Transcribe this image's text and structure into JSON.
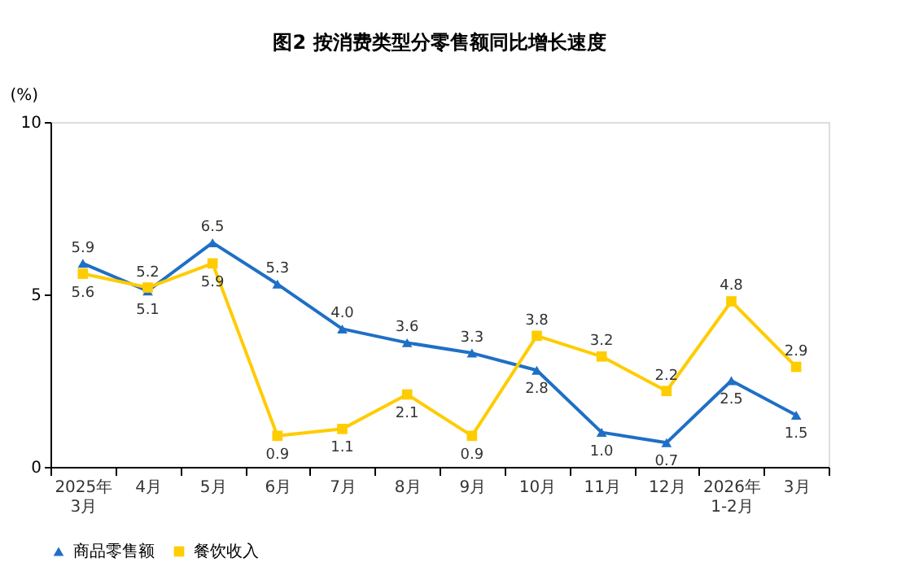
{
  "chart_data": {
    "type": "line",
    "title": "图2 按消费类型分零售额同比增长速度",
    "ylabel": "(%)",
    "categories": [
      "2025年\n3月",
      "4月",
      "5月",
      "6月",
      "7月",
      "8月",
      "9月",
      "10月",
      "11月",
      "12月",
      "2026年\n1-2月",
      "3月"
    ],
    "series": [
      {
        "name": "商品零售额",
        "color": "#1f6fc5",
        "marker": "triangle",
        "values": [
          5.9,
          5.1,
          6.5,
          5.3,
          4.0,
          3.6,
          3.3,
          2.8,
          1.0,
          0.7,
          2.5,
          1.5
        ],
        "value_labels": [
          "5.9",
          "5.1",
          "6.5",
          "5.3",
          "4.0",
          "3.6",
          "3.3",
          "2.8",
          "1.0",
          "0.7",
          "2.5",
          "1.5"
        ]
      },
      {
        "name": "餐饮收入",
        "color": "#ffcc00",
        "marker": "square",
        "values": [
          5.6,
          5.2,
          5.9,
          0.9,
          1.1,
          2.1,
          0.9,
          3.8,
          3.2,
          2.2,
          4.8,
          2.9
        ],
        "value_labels": [
          "5.6",
          "5.2",
          "5.9",
          "0.9",
          "1.1",
          "2.1",
          "0.9",
          "3.8",
          "3.2",
          "2.2",
          "4.8",
          "2.9"
        ]
      }
    ],
    "ylim": [
      0,
      10
    ],
    "yticks": [
      0,
      5,
      10
    ],
    "grid": false,
    "legend": "bottom",
    "line_style": "solid"
  }
}
